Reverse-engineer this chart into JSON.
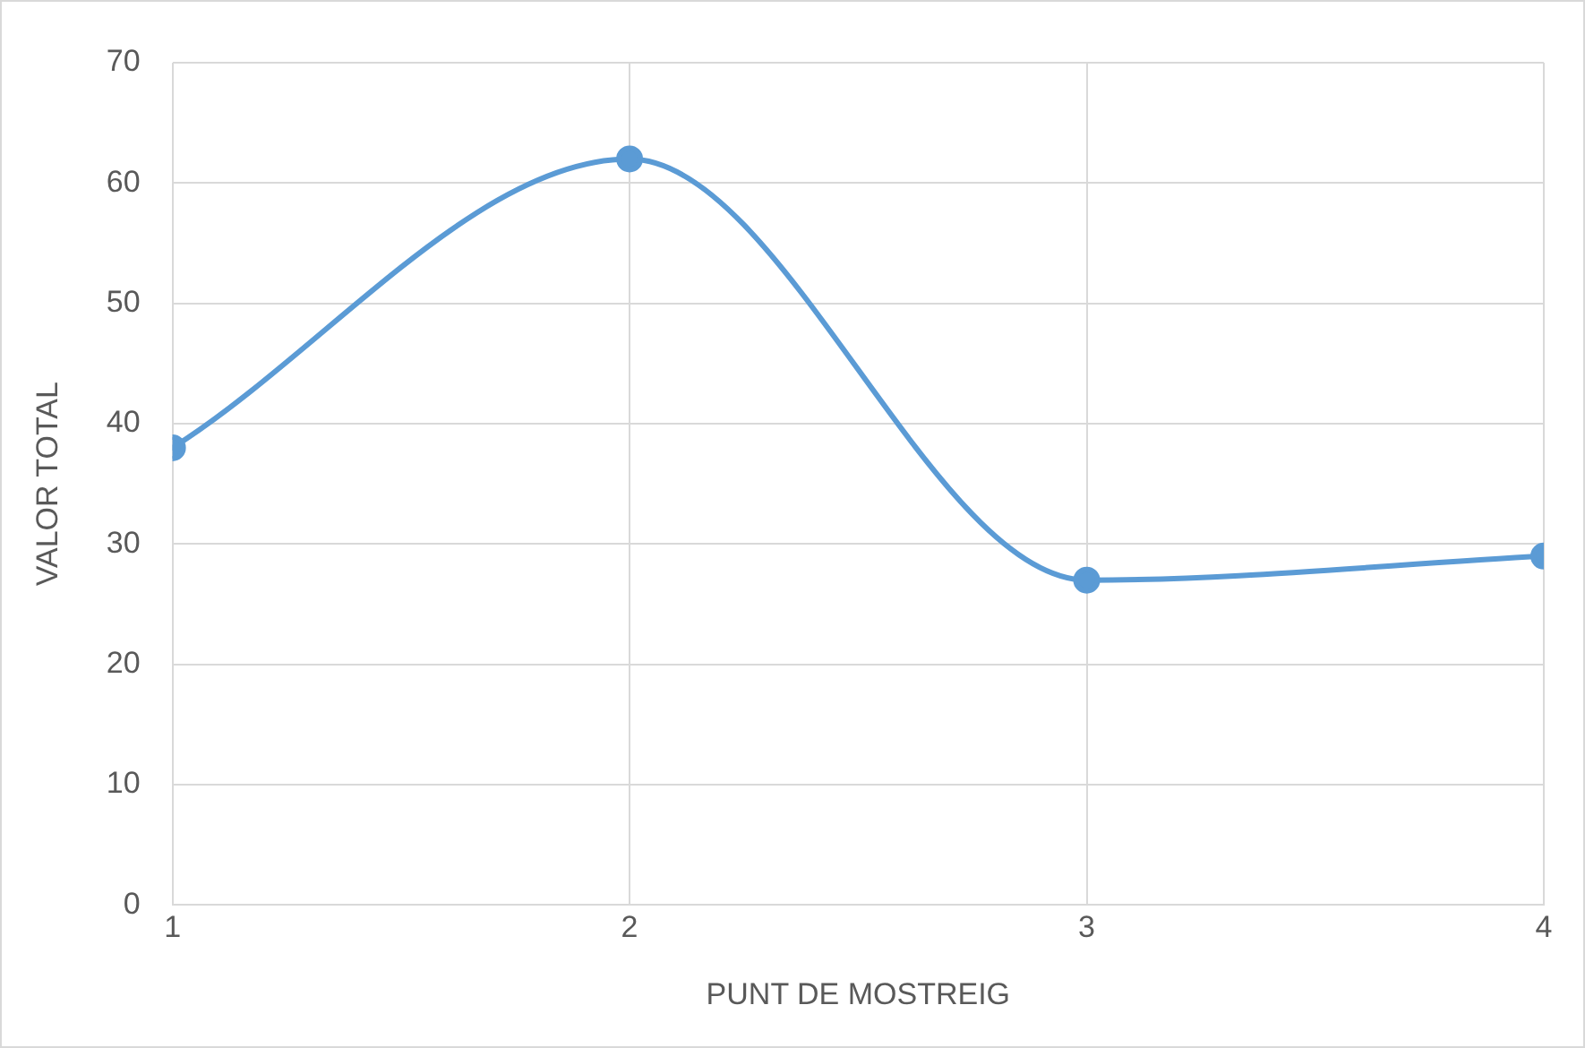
{
  "chart_data": {
    "type": "line",
    "xlabel": "PUNT DE MOSTREIG",
    "ylabel": "VALOR TOTAL",
    "x": [
      1,
      2,
      3,
      4
    ],
    "series": [
      {
        "color": "#5b9bd5",
        "values": [
          38,
          62,
          27,
          29
        ]
      }
    ],
    "xlim": [
      1,
      4
    ],
    "xticks": [
      1,
      2,
      3,
      4
    ],
    "ylim": [
      0,
      70
    ],
    "yticks": [
      0,
      10,
      20,
      30,
      40,
      50,
      60,
      70
    ],
    "grid": true,
    "marker": "circle",
    "line_style": "solid",
    "legend": false
  }
}
